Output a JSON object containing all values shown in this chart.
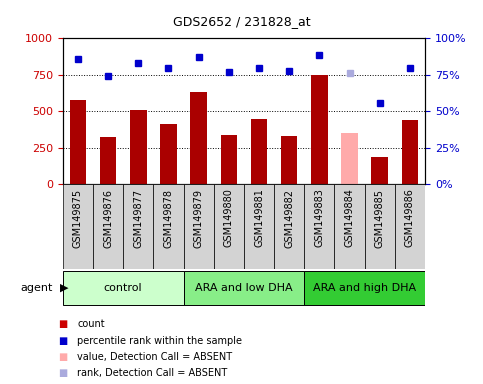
{
  "title": "GDS2652 / 231828_at",
  "samples": [
    "GSM149875",
    "GSM149876",
    "GSM149877",
    "GSM149878",
    "GSM149879",
    "GSM149880",
    "GSM149881",
    "GSM149882",
    "GSM149883",
    "GSM149884",
    "GSM149885",
    "GSM149886"
  ],
  "bar_values": [
    580,
    325,
    510,
    415,
    635,
    340,
    450,
    330,
    750,
    350,
    190,
    440
  ],
  "bar_colors": [
    "#aa0000",
    "#aa0000",
    "#aa0000",
    "#aa0000",
    "#aa0000",
    "#aa0000",
    "#aa0000",
    "#aa0000",
    "#aa0000",
    "#ffaaaa",
    "#aa0000",
    "#aa0000"
  ],
  "dot_values": [
    86,
    74.5,
    83,
    80,
    87.5,
    77,
    80,
    77.5,
    88.5,
    76,
    55.5,
    80
  ],
  "dot_colors": [
    "#0000cc",
    "#0000cc",
    "#0000cc",
    "#0000cc",
    "#0000cc",
    "#0000cc",
    "#0000cc",
    "#0000cc",
    "#0000cc",
    "#aaaadd",
    "#0000cc",
    "#0000cc"
  ],
  "groups": [
    {
      "label": "control",
      "start": 0,
      "end": 4,
      "color": "#ccffcc"
    },
    {
      "label": "ARA and low DHA",
      "start": 4,
      "end": 8,
      "color": "#88ee88"
    },
    {
      "label": "ARA and high DHA",
      "start": 8,
      "end": 12,
      "color": "#33cc33"
    }
  ],
  "ylim_left": [
    0,
    1000
  ],
  "ylim_right": [
    0,
    100
  ],
  "yticks_left": [
    0,
    250,
    500,
    750,
    1000
  ],
  "yticks_right": [
    0,
    25,
    50,
    75,
    100
  ],
  "ylabel_left_color": "#cc0000",
  "ylabel_right_color": "#0000cc",
  "plot_bg_color": "#ffffff",
  "tick_area_bg": "#d3d3d3",
  "legend_items": [
    {
      "label": "count",
      "color": "#cc0000"
    },
    {
      "label": "percentile rank within the sample",
      "color": "#0000cc"
    },
    {
      "label": "value, Detection Call = ABSENT",
      "color": "#ffaaaa"
    },
    {
      "label": "rank, Detection Call = ABSENT",
      "color": "#aaaadd"
    }
  ]
}
